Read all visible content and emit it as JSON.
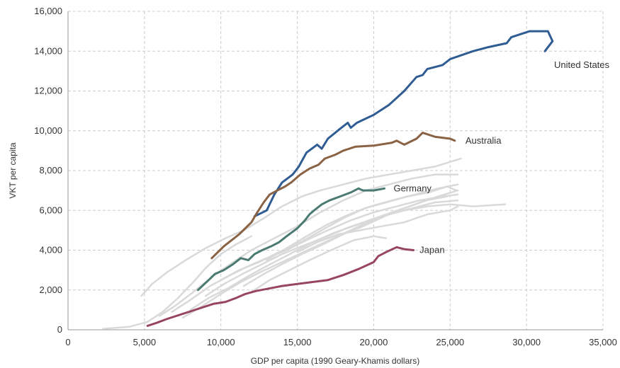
{
  "chart_data": {
    "type": "line",
    "title": "",
    "xlabel": "GDP per capita (1990 Geary-Khamis dollars)",
    "ylabel": "VKT per capita",
    "xlim": [
      0,
      35000
    ],
    "ylim": [
      0,
      16000
    ],
    "x_ticks": [
      0,
      5000,
      10000,
      15000,
      20000,
      25000,
      30000,
      35000
    ],
    "x_tick_labels": [
      "0",
      "5,000",
      "10,000",
      "15,000",
      "20,000",
      "25,000",
      "30,000",
      "35,000"
    ],
    "y_ticks": [
      0,
      2000,
      4000,
      6000,
      8000,
      10000,
      12000,
      14000,
      16000
    ],
    "y_tick_labels": [
      "0",
      "2,000",
      "4,000",
      "6,000",
      "8,000",
      "10,000",
      "12,000",
      "14,000",
      "16,000"
    ],
    "grid": true,
    "legend": "direct labels",
    "highlighted_series": [
      {
        "name": "United States",
        "color": "#2f5c93",
        "points": [
          [
            12200,
            5700
          ],
          [
            13000,
            6000
          ],
          [
            13500,
            6800
          ],
          [
            14000,
            7400
          ],
          [
            14700,
            7800
          ],
          [
            15100,
            8200
          ],
          [
            15600,
            8900
          ],
          [
            16300,
            9300
          ],
          [
            16600,
            9100
          ],
          [
            17000,
            9600
          ],
          [
            17800,
            10100
          ],
          [
            18300,
            10400
          ],
          [
            18500,
            10150
          ],
          [
            18900,
            10400
          ],
          [
            20000,
            10800
          ],
          [
            21000,
            11300
          ],
          [
            22000,
            12000
          ],
          [
            22800,
            12700
          ],
          [
            23200,
            12800
          ],
          [
            23500,
            13100
          ],
          [
            24500,
            13300
          ],
          [
            25000,
            13600
          ],
          [
            26500,
            14000
          ],
          [
            27500,
            14200
          ],
          [
            28700,
            14400
          ],
          [
            29000,
            14700
          ],
          [
            29800,
            14900
          ],
          [
            30200,
            15000
          ],
          [
            31400,
            15000
          ],
          [
            31700,
            14500
          ],
          [
            31200,
            14000
          ]
        ]
      },
      {
        "name": "Australia",
        "color": "#8a6244",
        "points": [
          [
            9400,
            3600
          ],
          [
            10200,
            4200
          ],
          [
            11200,
            4800
          ],
          [
            12000,
            5400
          ],
          [
            12300,
            5800
          ],
          [
            12800,
            6400
          ],
          [
            13200,
            6800
          ],
          [
            13700,
            7000
          ],
          [
            14200,
            7200
          ],
          [
            14600,
            7400
          ],
          [
            15200,
            7800
          ],
          [
            15800,
            8100
          ],
          [
            16400,
            8300
          ],
          [
            16800,
            8600
          ],
          [
            17500,
            8800
          ],
          [
            18000,
            9000
          ],
          [
            18800,
            9200
          ],
          [
            20000,
            9250
          ],
          [
            21200,
            9400
          ],
          [
            21500,
            9500
          ],
          [
            22000,
            9300
          ],
          [
            22800,
            9600
          ],
          [
            23200,
            9900
          ],
          [
            24000,
            9700
          ],
          [
            25000,
            9600
          ],
          [
            25300,
            9500
          ]
        ]
      },
      {
        "name": "Germany",
        "color": "#4a7a72",
        "points": [
          [
            8500,
            2000
          ],
          [
            9200,
            2500
          ],
          [
            9600,
            2800
          ],
          [
            10200,
            3000
          ],
          [
            10800,
            3300
          ],
          [
            11300,
            3600
          ],
          [
            11800,
            3500
          ],
          [
            12200,
            3800
          ],
          [
            12700,
            4000
          ],
          [
            13300,
            4200
          ],
          [
            13800,
            4400
          ],
          [
            14300,
            4700
          ],
          [
            15000,
            5100
          ],
          [
            15500,
            5500
          ],
          [
            15800,
            5800
          ],
          [
            16100,
            6000
          ],
          [
            16600,
            6300
          ],
          [
            17100,
            6500
          ],
          [
            17800,
            6700
          ],
          [
            18500,
            6900
          ],
          [
            19000,
            7100
          ],
          [
            19300,
            7000
          ],
          [
            20000,
            7000
          ],
          [
            20700,
            7100
          ]
        ]
      },
      {
        "name": "Japan",
        "color": "#98465f",
        "points": [
          [
            5200,
            200
          ],
          [
            5800,
            350
          ],
          [
            6500,
            550
          ],
          [
            7500,
            800
          ],
          [
            8500,
            1050
          ],
          [
            9500,
            1300
          ],
          [
            10300,
            1400
          ],
          [
            11000,
            1600
          ],
          [
            11600,
            1800
          ],
          [
            12300,
            1950
          ],
          [
            13000,
            2050
          ],
          [
            14000,
            2200
          ],
          [
            15000,
            2300
          ],
          [
            16000,
            2400
          ],
          [
            17000,
            2500
          ],
          [
            18000,
            2750
          ],
          [
            19000,
            3050
          ],
          [
            20000,
            3400
          ],
          [
            20300,
            3700
          ],
          [
            20800,
            3900
          ],
          [
            21500,
            4150
          ],
          [
            22000,
            4050
          ],
          [
            22600,
            4000
          ]
        ]
      }
    ],
    "background_series_color": "#d9d9d9",
    "background_series": [
      [
        [
          2300,
          50
        ],
        [
          4000,
          150
        ],
        [
          5200,
          400
        ],
        [
          6200,
          900
        ],
        [
          7200,
          1600
        ],
        [
          8200,
          2400
        ],
        [
          9000,
          3100
        ],
        [
          10000,
          3800
        ],
        [
          11000,
          4300
        ],
        [
          12000,
          4700
        ]
      ],
      [
        [
          4800,
          1700
        ],
        [
          5500,
          2300
        ],
        [
          6500,
          2900
        ],
        [
          7700,
          3500
        ],
        [
          9000,
          4100
        ],
        [
          10300,
          4600
        ],
        [
          11500,
          5000
        ],
        [
          12800,
          5600
        ],
        [
          14000,
          6200
        ],
        [
          15300,
          6700
        ],
        [
          16500,
          7000
        ],
        [
          18000,
          7300
        ],
        [
          19500,
          7600
        ],
        [
          21000,
          7800
        ],
        [
          22500,
          8000
        ],
        [
          24000,
          8200
        ],
        [
          25700,
          8600
        ]
      ],
      [
        [
          6000,
          700
        ],
        [
          7000,
          1200
        ],
        [
          8200,
          1900
        ],
        [
          9500,
          2700
        ],
        [
          10800,
          3400
        ],
        [
          12000,
          4000
        ],
        [
          13500,
          4600
        ],
        [
          15000,
          5200
        ],
        [
          16500,
          5900
        ],
        [
          18000,
          6500
        ],
        [
          19500,
          7000
        ],
        [
          21000,
          7300
        ],
        [
          22500,
          7600
        ],
        [
          24000,
          7800
        ],
        [
          25500,
          7800
        ]
      ],
      [
        [
          6800,
          900
        ],
        [
          8000,
          1500
        ],
        [
          9300,
          2200
        ],
        [
          10500,
          2700
        ],
        [
          11800,
          3200
        ],
        [
          13000,
          3600
        ],
        [
          14300,
          4000
        ],
        [
          15600,
          4500
        ],
        [
          17000,
          5000
        ],
        [
          18500,
          5500
        ],
        [
          20000,
          5900
        ],
        [
          21500,
          6200
        ],
        [
          23000,
          6500
        ],
        [
          24500,
          6700
        ],
        [
          25500,
          6800
        ]
      ],
      [
        [
          7500,
          600
        ],
        [
          8800,
          1200
        ],
        [
          10000,
          1800
        ],
        [
          11300,
          2400
        ],
        [
          12600,
          2900
        ],
        [
          14000,
          3400
        ],
        [
          15400,
          3900
        ],
        [
          16800,
          4400
        ],
        [
          18200,
          4900
        ],
        [
          19600,
          5400
        ],
        [
          21000,
          5800
        ],
        [
          22500,
          6100
        ],
        [
          24000,
          6400
        ],
        [
          25500,
          6500
        ]
      ],
      [
        [
          8000,
          1000
        ],
        [
          9200,
          1600
        ],
        [
          10500,
          2100
        ],
        [
          11800,
          2700
        ],
        [
          13000,
          3200
        ],
        [
          14500,
          3800
        ],
        [
          16000,
          4400
        ],
        [
          17500,
          4900
        ],
        [
          19000,
          5300
        ],
        [
          20500,
          5700
        ],
        [
          22000,
          6000
        ],
        [
          23500,
          6200
        ],
        [
          25000,
          6300
        ],
        [
          26500,
          6200
        ],
        [
          28600,
          6300
        ]
      ],
      [
        [
          9000,
          1700
        ],
        [
          10200,
          2300
        ],
        [
          11400,
          2800
        ],
        [
          12700,
          3300
        ],
        [
          14000,
          3800
        ],
        [
          15300,
          4200
        ],
        [
          16700,
          4600
        ],
        [
          18200,
          5100
        ],
        [
          19700,
          5500
        ],
        [
          21200,
          5900
        ],
        [
          22700,
          6300
        ],
        [
          24200,
          6700
        ],
        [
          25500,
          7000
        ]
      ],
      [
        [
          10000,
          2500
        ],
        [
          11200,
          3000
        ],
        [
          12500,
          3400
        ],
        [
          13800,
          3900
        ],
        [
          15200,
          4400
        ],
        [
          16600,
          5000
        ],
        [
          18000,
          5600
        ],
        [
          19400,
          6100
        ],
        [
          20800,
          6400
        ],
        [
          22200,
          6700
        ],
        [
          23600,
          6900
        ],
        [
          24800,
          7200
        ],
        [
          25400,
          7000
        ]
      ],
      [
        [
          11500,
          2200
        ],
        [
          12800,
          2800
        ],
        [
          14000,
          3300
        ],
        [
          15300,
          3800
        ],
        [
          16700,
          4300
        ],
        [
          18000,
          4800
        ],
        [
          19300,
          5200
        ],
        [
          20700,
          5700
        ],
        [
          22000,
          6100
        ],
        [
          23400,
          6500
        ],
        [
          24800,
          6700
        ]
      ],
      [
        [
          13000,
          3500
        ],
        [
          14300,
          4100
        ],
        [
          15600,
          4700
        ],
        [
          17000,
          5300
        ],
        [
          18400,
          5800
        ],
        [
          19800,
          6200
        ],
        [
          21200,
          6500
        ],
        [
          22700,
          6800
        ],
        [
          24200,
          7100
        ],
        [
          25500,
          7300
        ]
      ],
      [
        [
          15000,
          3900
        ],
        [
          16300,
          4400
        ],
        [
          17700,
          4800
        ],
        [
          19100,
          5000
        ],
        [
          20500,
          5200
        ],
        [
          22000,
          5400
        ],
        [
          23500,
          5800
        ],
        [
          25000,
          6000
        ],
        [
          25500,
          6200
        ]
      ],
      [
        [
          12000,
          1900
        ],
        [
          13200,
          2500
        ],
        [
          14500,
          3000
        ],
        [
          15800,
          3500
        ],
        [
          17200,
          4000
        ],
        [
          18700,
          4500
        ],
        [
          20000,
          4700
        ],
        [
          20800,
          4600
        ]
      ]
    ],
    "annotations": [
      {
        "text": "United States",
        "x": 31800,
        "y": 13300
      },
      {
        "text": "Australia",
        "x": 26000,
        "y": 9500
      },
      {
        "text": "Germany",
        "x": 21300,
        "y": 7100
      },
      {
        "text": "Japan",
        "x": 23000,
        "y": 4000
      }
    ]
  }
}
